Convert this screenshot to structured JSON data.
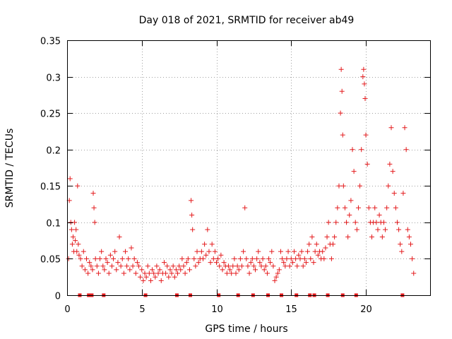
{
  "chart_data": {
    "type": "scatter",
    "title": "Day 018 of 2021, SRMTID for receiver ab49",
    "xlabel": "GPS time / hours",
    "ylabel": "SRMTID / TECUs",
    "xlim": [
      0,
      24.3
    ],
    "ylim": [
      0,
      0.35
    ],
    "x_ticks": [
      0,
      5,
      10,
      15,
      20
    ],
    "y_ticks": [
      0,
      0.05,
      0.1,
      0.15,
      0.2,
      0.25,
      0.3,
      0.35
    ],
    "x_tick_labels": [
      "0",
      "5",
      "10",
      "15",
      "20"
    ],
    "y_tick_labels": [
      "0",
      "0.05",
      "0.1",
      "0.15",
      "0.2",
      "0.25",
      "0.3",
      "0.35"
    ],
    "grid": true,
    "marker": "+",
    "color": "#e41a1c",
    "series": [
      {
        "name": "SRMTID",
        "points": [
          [
            0.1,
            0.05
          ],
          [
            0.15,
            0.13
          ],
          [
            0.2,
            0.16
          ],
          [
            0.25,
            0.1
          ],
          [
            0.3,
            0.09
          ],
          [
            0.35,
            0.07
          ],
          [
            0.4,
            0.08
          ],
          [
            0.45,
            0.06
          ],
          [
            0.5,
            0.1
          ],
          [
            0.55,
            0.075
          ],
          [
            0.6,
            0.09
          ],
          [
            0.65,
            0.06
          ],
          [
            0.7,
            0.15
          ],
          [
            0.75,
            0.07
          ],
          [
            0.8,
            0.055
          ],
          [
            0.9,
            0.05
          ],
          [
            1.0,
            0.04
          ],
          [
            1.1,
            0.06
          ],
          [
            1.2,
            0.035
          ],
          [
            1.3,
            0.05
          ],
          [
            1.4,
            0.03
          ],
          [
            1.5,
            0.045
          ],
          [
            1.6,
            0.04
          ],
          [
            1.7,
            0.035
          ],
          [
            1.75,
            0.14
          ],
          [
            1.8,
            0.12
          ],
          [
            1.85,
            0.1
          ],
          [
            1.9,
            0.05
          ],
          [
            2.0,
            0.04
          ],
          [
            2.1,
            0.03
          ],
          [
            2.2,
            0.05
          ],
          [
            2.3,
            0.06
          ],
          [
            2.4,
            0.04
          ],
          [
            2.5,
            0.035
          ],
          [
            2.6,
            0.05
          ],
          [
            2.7,
            0.045
          ],
          [
            2.8,
            0.03
          ],
          [
            2.9,
            0.055
          ],
          [
            3.0,
            0.04
          ],
          [
            3.1,
            0.05
          ],
          [
            3.2,
            0.06
          ],
          [
            3.3,
            0.035
          ],
          [
            3.4,
            0.045
          ],
          [
            3.5,
            0.08
          ],
          [
            3.6,
            0.04
          ],
          [
            3.7,
            0.05
          ],
          [
            3.8,
            0.03
          ],
          [
            3.9,
            0.06
          ],
          [
            4.0,
            0.04
          ],
          [
            4.1,
            0.05
          ],
          [
            4.2,
            0.035
          ],
          [
            4.3,
            0.065
          ],
          [
            4.4,
            0.04
          ],
          [
            4.5,
            0.05
          ],
          [
            4.6,
            0.03
          ],
          [
            4.7,
            0.045
          ],
          [
            4.8,
            0.04
          ],
          [
            4.9,
            0.025
          ],
          [
            5.0,
            0.035
          ],
          [
            5.1,
            0.02
          ],
          [
            5.2,
            0.03
          ],
          [
            5.3,
            0.025
          ],
          [
            5.4,
            0.04
          ],
          [
            5.5,
            0.03
          ],
          [
            5.6,
            0.02
          ],
          [
            5.7,
            0.035
          ],
          [
            5.8,
            0.03
          ],
          [
            5.9,
            0.025
          ],
          [
            6.0,
            0.04
          ],
          [
            6.1,
            0.03
          ],
          [
            6.2,
            0.035
          ],
          [
            6.3,
            0.02
          ],
          [
            6.4,
            0.03
          ],
          [
            6.5,
            0.045
          ],
          [
            6.6,
            0.03
          ],
          [
            6.7,
            0.04
          ],
          [
            6.8,
            0.025
          ],
          [
            6.9,
            0.035
          ],
          [
            7.0,
            0.03
          ],
          [
            7.1,
            0.04
          ],
          [
            7.2,
            0.025
          ],
          [
            7.3,
            0.035
          ],
          [
            7.4,
            0.03
          ],
          [
            7.5,
            0.04
          ],
          [
            7.6,
            0.035
          ],
          [
            7.7,
            0.05
          ],
          [
            7.8,
            0.04
          ],
          [
            7.9,
            0.03
          ],
          [
            8.0,
            0.045
          ],
          [
            8.1,
            0.05
          ],
          [
            8.2,
            0.035
          ],
          [
            8.3,
            0.13
          ],
          [
            8.35,
            0.11
          ],
          [
            8.4,
            0.09
          ],
          [
            8.5,
            0.05
          ],
          [
            8.6,
            0.04
          ],
          [
            8.7,
            0.06
          ],
          [
            8.8,
            0.045
          ],
          [
            8.9,
            0.05
          ],
          [
            9.0,
            0.06
          ],
          [
            9.1,
            0.05
          ],
          [
            9.2,
            0.07
          ],
          [
            9.3,
            0.055
          ],
          [
            9.4,
            0.09
          ],
          [
            9.5,
            0.06
          ],
          [
            9.6,
            0.045
          ],
          [
            9.7,
            0.07
          ],
          [
            9.8,
            0.05
          ],
          [
            9.9,
            0.06
          ],
          [
            10.0,
            0.045
          ],
          [
            10.1,
            0.05
          ],
          [
            10.2,
            0.04
          ],
          [
            10.3,
            0.055
          ],
          [
            10.4,
            0.035
          ],
          [
            10.5,
            0.045
          ],
          [
            10.6,
            0.04
          ],
          [
            10.7,
            0.03
          ],
          [
            10.8,
            0.04
          ],
          [
            10.9,
            0.035
          ],
          [
            11.0,
            0.03
          ],
          [
            11.1,
            0.04
          ],
          [
            11.2,
            0.05
          ],
          [
            11.3,
            0.03
          ],
          [
            11.4,
            0.04
          ],
          [
            11.5,
            0.035
          ],
          [
            11.6,
            0.05
          ],
          [
            11.7,
            0.04
          ],
          [
            11.8,
            0.06
          ],
          [
            11.9,
            0.12
          ],
          [
            12.0,
            0.05
          ],
          [
            12.1,
            0.04
          ],
          [
            12.2,
            0.03
          ],
          [
            12.3,
            0.045
          ],
          [
            12.4,
            0.05
          ],
          [
            12.5,
            0.04
          ],
          [
            12.6,
            0.035
          ],
          [
            12.7,
            0.05
          ],
          [
            12.8,
            0.06
          ],
          [
            12.9,
            0.045
          ],
          [
            13.0,
            0.04
          ],
          [
            13.1,
            0.05
          ],
          [
            13.2,
            0.035
          ],
          [
            13.3,
            0.04
          ],
          [
            13.4,
            0.03
          ],
          [
            13.5,
            0.05
          ],
          [
            13.6,
            0.045
          ],
          [
            13.7,
            0.06
          ],
          [
            13.8,
            0.04
          ],
          [
            13.9,
            0.02
          ],
          [
            14.0,
            0.025
          ],
          [
            14.1,
            0.03
          ],
          [
            14.2,
            0.035
          ],
          [
            14.3,
            0.06
          ],
          [
            14.4,
            0.05
          ],
          [
            14.5,
            0.045
          ],
          [
            14.6,
            0.04
          ],
          [
            14.7,
            0.05
          ],
          [
            14.8,
            0.06
          ],
          [
            14.9,
            0.04
          ],
          [
            15.0,
            0.05
          ],
          [
            15.1,
            0.045
          ],
          [
            15.2,
            0.06
          ],
          [
            15.3,
            0.05
          ],
          [
            15.4,
            0.04
          ],
          [
            15.5,
            0.055
          ],
          [
            15.6,
            0.05
          ],
          [
            15.7,
            0.06
          ],
          [
            15.8,
            0.04
          ],
          [
            15.9,
            0.05
          ],
          [
            16.0,
            0.045
          ],
          [
            16.1,
            0.06
          ],
          [
            16.2,
            0.07
          ],
          [
            16.3,
            0.05
          ],
          [
            16.4,
            0.08
          ],
          [
            16.5,
            0.045
          ],
          [
            16.6,
            0.06
          ],
          [
            16.7,
            0.07
          ],
          [
            16.8,
            0.055
          ],
          [
            16.9,
            0.06
          ],
          [
            17.0,
            0.05
          ],
          [
            17.1,
            0.06
          ],
          [
            17.2,
            0.05
          ],
          [
            17.3,
            0.065
          ],
          [
            17.4,
            0.08
          ],
          [
            17.5,
            0.1
          ],
          [
            17.6,
            0.07
          ],
          [
            17.7,
            0.05
          ],
          [
            17.8,
            0.07
          ],
          [
            17.9,
            0.08
          ],
          [
            18.0,
            0.1
          ],
          [
            18.1,
            0.12
          ],
          [
            18.2,
            0.15
          ],
          [
            18.3,
            0.25
          ],
          [
            18.35,
            0.31
          ],
          [
            18.4,
            0.28
          ],
          [
            18.45,
            0.22
          ],
          [
            18.5,
            0.15
          ],
          [
            18.6,
            0.12
          ],
          [
            18.7,
            0.1
          ],
          [
            18.8,
            0.08
          ],
          [
            18.9,
            0.11
          ],
          [
            19.0,
            0.13
          ],
          [
            19.1,
            0.2
          ],
          [
            19.2,
            0.17
          ],
          [
            19.3,
            0.1
          ],
          [
            19.4,
            0.09
          ],
          [
            19.5,
            0.12
          ],
          [
            19.6,
            0.15
          ],
          [
            19.7,
            0.2
          ],
          [
            19.8,
            0.3
          ],
          [
            19.85,
            0.31
          ],
          [
            19.9,
            0.29
          ],
          [
            19.95,
            0.27
          ],
          [
            20.0,
            0.22
          ],
          [
            20.1,
            0.18
          ],
          [
            20.2,
            0.12
          ],
          [
            20.3,
            0.1
          ],
          [
            20.4,
            0.08
          ],
          [
            20.5,
            0.1
          ],
          [
            20.6,
            0.12
          ],
          [
            20.7,
            0.1
          ],
          [
            20.8,
            0.09
          ],
          [
            20.9,
            0.11
          ],
          [
            21.0,
            0.1
          ],
          [
            21.1,
            0.08
          ],
          [
            21.2,
            0.1
          ],
          [
            21.3,
            0.09
          ],
          [
            21.4,
            0.12
          ],
          [
            21.5,
            0.15
          ],
          [
            21.6,
            0.18
          ],
          [
            21.7,
            0.23
          ],
          [
            21.8,
            0.17
          ],
          [
            21.9,
            0.14
          ],
          [
            22.0,
            0.12
          ],
          [
            22.1,
            0.1
          ],
          [
            22.2,
            0.09
          ],
          [
            22.3,
            0.07
          ],
          [
            22.4,
            0.06
          ],
          [
            22.5,
            0.14
          ],
          [
            22.6,
            0.23
          ],
          [
            22.7,
            0.2
          ],
          [
            22.8,
            0.09
          ],
          [
            22.9,
            0.08
          ],
          [
            23.0,
            0.07
          ],
          [
            23.1,
            0.05
          ],
          [
            23.2,
            0.03
          ]
        ]
      }
    ],
    "zero_markers_x": [
      0.85,
      1.45,
      1.65,
      2.45,
      5.25,
      7.35,
      8.25,
      10.15,
      11.45,
      12.45,
      13.45,
      14.35,
      15.35,
      16.25,
      16.55,
      17.45,
      18.45,
      19.35,
      22.45
    ]
  }
}
